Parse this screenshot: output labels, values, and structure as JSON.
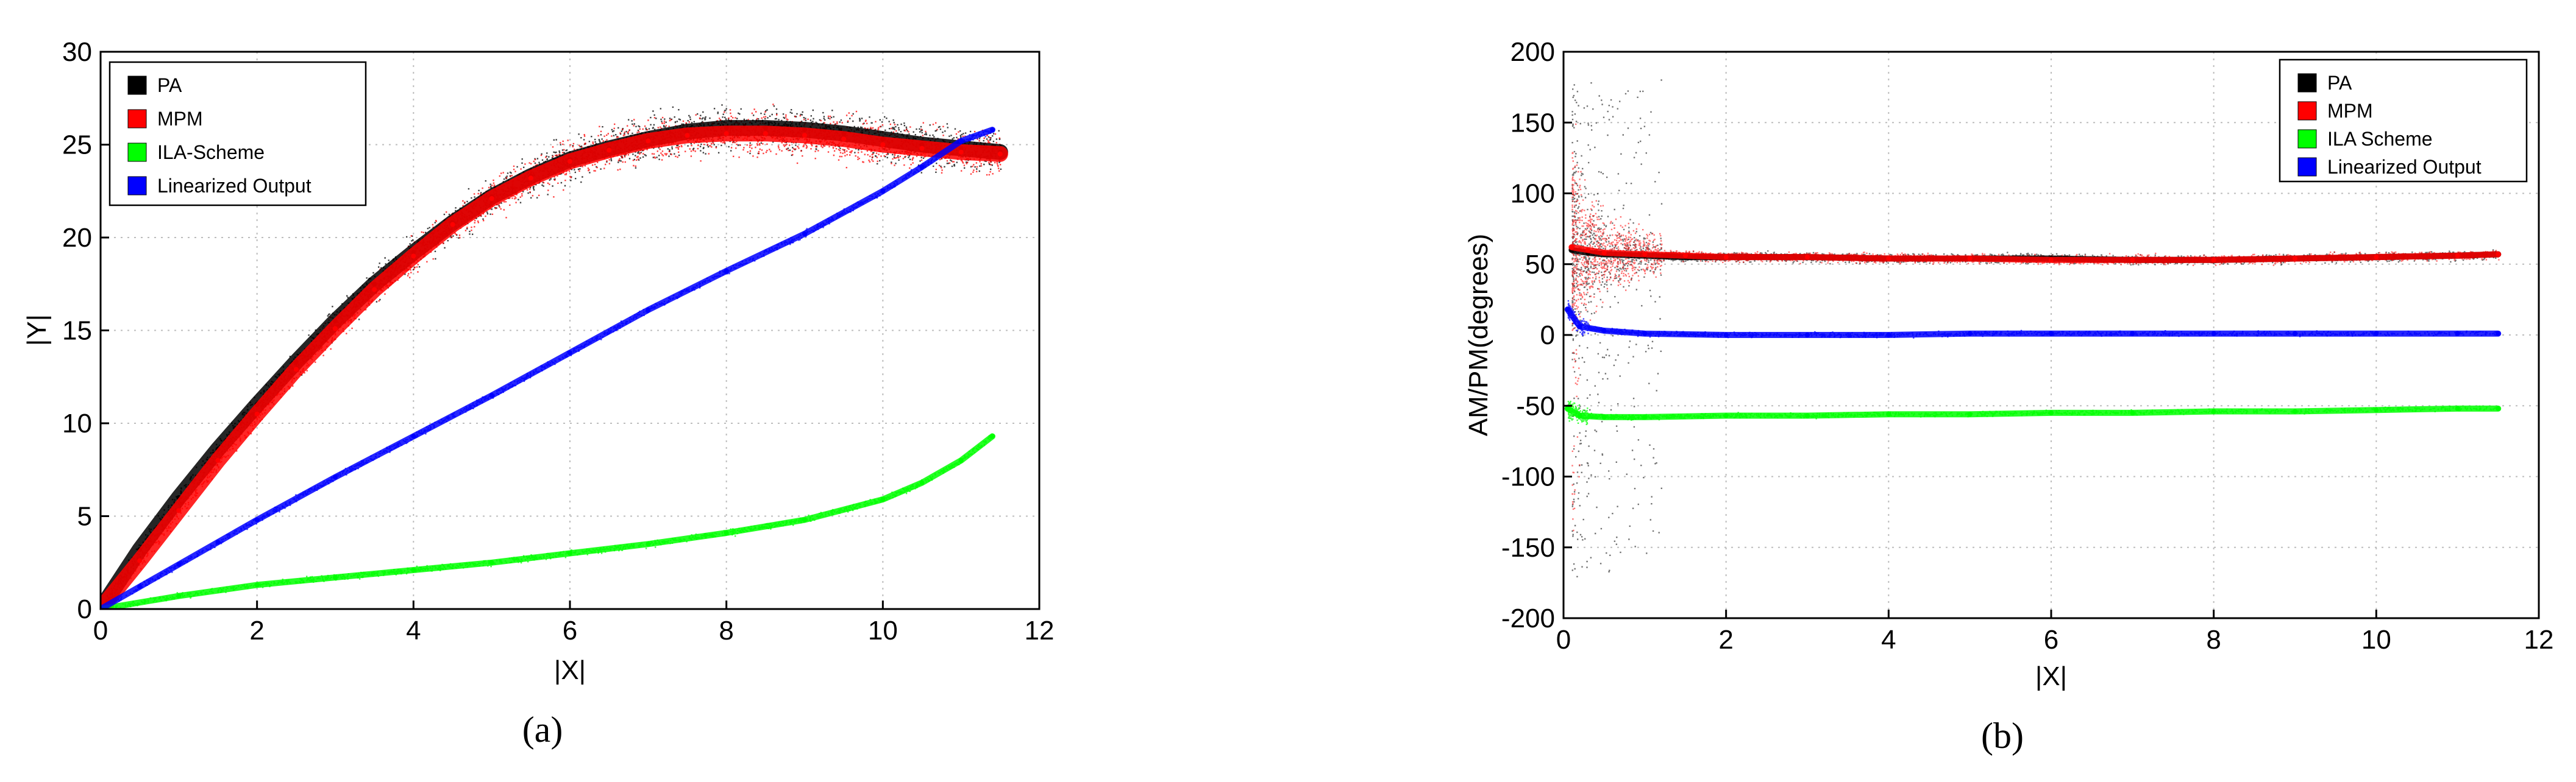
{
  "chart_data": [
    {
      "type": "scatter",
      "caption": "(a)",
      "xlabel": "|X|",
      "ylabel": "|Y|",
      "xlim": [
        0,
        12
      ],
      "ylim": [
        0,
        30
      ],
      "xticks": [
        0,
        2,
        4,
        6,
        8,
        10,
        12
      ],
      "yticks": [
        0,
        5,
        10,
        15,
        20,
        25,
        30
      ],
      "grid": true,
      "legend_position": "top-left",
      "series": [
        {
          "name": "PA",
          "color": "#000000",
          "x": [
            0,
            0.5,
            1,
            1.5,
            2,
            2.5,
            3,
            3.5,
            4,
            4.5,
            5,
            5.5,
            6,
            6.5,
            7,
            7.5,
            8,
            8.5,
            9,
            9.5,
            10,
            10.5,
            11,
            11.5
          ],
          "y": [
            0,
            3.2,
            6.0,
            8.6,
            11.0,
            13.3,
            15.5,
            17.5,
            19.2,
            20.8,
            22.2,
            23.3,
            24.2,
            24.8,
            25.3,
            25.7,
            25.9,
            25.9,
            25.8,
            25.6,
            25.3,
            25.0,
            24.8,
            24.6
          ]
        },
        {
          "name": "MPM",
          "color": "#ff0000",
          "x": [
            0,
            0.5,
            1,
            1.5,
            2,
            2.5,
            3,
            3.5,
            4,
            4.5,
            5,
            5.5,
            6,
            6.5,
            7,
            7.5,
            8,
            8.5,
            9,
            9.5,
            10,
            10.5,
            11,
            11.5
          ],
          "y": [
            0,
            2.6,
            5.3,
            8.0,
            10.5,
            12.9,
            15.1,
            17.2,
            19.0,
            20.7,
            22.1,
            23.2,
            24.1,
            24.7,
            25.2,
            25.5,
            25.6,
            25.6,
            25.5,
            25.3,
            25.0,
            24.8,
            24.6,
            24.5
          ]
        },
        {
          "name": "ILA-Scheme",
          "color": "#00ff00",
          "x": [
            0,
            1,
            2,
            3,
            4,
            5,
            6,
            7,
            8,
            9,
            10,
            10.5,
            11,
            11.4
          ],
          "y": [
            0,
            0.7,
            1.3,
            1.7,
            2.1,
            2.5,
            3.0,
            3.5,
            4.1,
            4.8,
            5.9,
            6.8,
            8.0,
            9.3
          ]
        },
        {
          "name": "Linearized Output",
          "color": "#0000ff",
          "x": [
            0,
            0.5,
            1,
            1.5,
            2,
            3,
            4,
            5,
            6,
            7,
            8,
            9,
            10,
            10.5,
            11,
            11.4
          ],
          "y": [
            0,
            1.2,
            2.4,
            3.6,
            4.8,
            7.1,
            9.3,
            11.5,
            13.8,
            16.1,
            18.2,
            20.2,
            22.5,
            23.8,
            25.2,
            25.8
          ]
        }
      ]
    },
    {
      "type": "scatter",
      "caption": "(b)",
      "xlabel": "|X|",
      "ylabel": "AM/PM(degrees)",
      "xlim": [
        0,
        12
      ],
      "ylim": [
        -200,
        200
      ],
      "xticks": [
        0,
        2,
        4,
        6,
        8,
        10,
        12
      ],
      "yticks": [
        -200,
        -150,
        -100,
        -50,
        0,
        50,
        100,
        150,
        200
      ],
      "grid": true,
      "legend_position": "top-right",
      "series": [
        {
          "name": "PA",
          "color": "#000000",
          "x": [
            0.1,
            0.3,
            0.5,
            1,
            1.5,
            2,
            3,
            4,
            5,
            6,
            7,
            8,
            9,
            10,
            11,
            11.5
          ],
          "y": [
            60,
            58,
            57,
            56,
            55,
            55,
            55,
            54,
            54,
            54,
            53,
            53,
            54,
            55,
            56,
            57
          ]
        },
        {
          "name": "MPM",
          "color": "#ff0000",
          "x": [
            0.1,
            0.3,
            0.5,
            1,
            1.5,
            2,
            3,
            4,
            5,
            6,
            7,
            8,
            9,
            10,
            11,
            11.5
          ],
          "y": [
            62,
            60,
            58,
            57,
            56,
            55,
            55,
            54,
            54,
            53,
            53,
            53,
            54,
            55,
            56,
            57
          ]
        },
        {
          "name": "ILA Scheme",
          "color": "#00ff00",
          "x": [
            0.05,
            0.2,
            0.5,
            1,
            2,
            3,
            4,
            5,
            6,
            7,
            8,
            9,
            10,
            11,
            11.5
          ],
          "y": [
            -52,
            -57,
            -58,
            -58,
            -57,
            -57,
            -56,
            -56,
            -55,
            -55,
            -54,
            -54,
            -53,
            -52,
            -52
          ]
        },
        {
          "name": "Linearized Output",
          "color": "#0000ff",
          "x": [
            0.05,
            0.2,
            0.5,
            1,
            2,
            3,
            4,
            5,
            6,
            7,
            8,
            9,
            10,
            11,
            11.5
          ],
          "y": [
            18,
            6,
            3,
            1,
            0,
            0,
            0,
            1,
            1,
            1,
            1,
            1,
            1,
            1,
            1
          ]
        }
      ]
    }
  ]
}
